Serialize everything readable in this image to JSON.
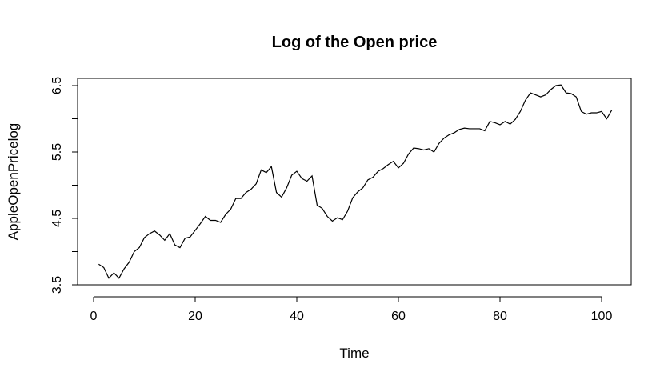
{
  "chart_data": {
    "type": "line",
    "title": "Log of the Open price",
    "xlabel": "Time",
    "ylabel": "AppleOpenPricelog",
    "xlim": [
      1,
      102
    ],
    "ylim": [
      3.5,
      6.5
    ],
    "grid": false,
    "line_color": "#000000",
    "x_ticks": [
      0,
      20,
      40,
      60,
      80,
      100
    ],
    "x_tick_labels": [
      "0",
      "20",
      "40",
      "60",
      "80",
      "100"
    ],
    "y_ticks": [
      3.5,
      4.0,
      4.5,
      5.0,
      5.5,
      6.0,
      6.5
    ],
    "y_tick_labels": [
      "3.5",
      "",
      "4.5",
      "",
      "5.5",
      "",
      "6.5"
    ],
    "x": [
      1,
      2,
      3,
      4,
      5,
      6,
      7,
      8,
      9,
      10,
      11,
      12,
      13,
      14,
      15,
      16,
      17,
      18,
      19,
      20,
      21,
      22,
      23,
      24,
      25,
      26,
      27,
      28,
      29,
      30,
      31,
      32,
      33,
      34,
      35,
      36,
      37,
      38,
      39,
      40,
      41,
      42,
      43,
      44,
      45,
      46,
      47,
      48,
      49,
      50,
      51,
      52,
      53,
      54,
      55,
      56,
      57,
      58,
      59,
      60,
      61,
      62,
      63,
      64,
      65,
      66,
      67,
      68,
      69,
      70,
      71,
      72,
      73,
      74,
      75,
      76,
      77,
      78,
      79,
      80,
      81,
      82,
      83,
      84,
      85,
      86,
      87,
      88,
      89,
      90,
      91,
      92,
      93,
      94,
      95,
      96,
      97,
      98,
      99,
      100,
      101,
      102
    ],
    "series": [
      {
        "values": [
          3.81,
          3.76,
          3.6,
          3.68,
          3.6,
          3.74,
          3.84,
          4.0,
          4.06,
          4.21,
          4.27,
          4.31,
          4.25,
          4.17,
          4.27,
          4.1,
          4.06,
          4.2,
          4.22,
          4.32,
          4.42,
          4.53,
          4.47,
          4.47,
          4.44,
          4.56,
          4.64,
          4.8,
          4.8,
          4.89,
          4.94,
          5.02,
          5.23,
          5.19,
          5.28,
          4.89,
          4.82,
          4.96,
          5.15,
          5.21,
          5.1,
          5.06,
          5.14,
          4.7,
          4.65,
          4.53,
          4.46,
          4.51,
          4.48,
          4.61,
          4.81,
          4.9,
          4.96,
          5.08,
          5.12,
          5.21,
          5.25,
          5.31,
          5.36,
          5.26,
          5.33,
          5.47,
          5.56,
          5.55,
          5.53,
          5.55,
          5.5,
          5.63,
          5.71,
          5.76,
          5.79,
          5.84,
          5.86,
          5.85,
          5.85,
          5.85,
          5.82,
          5.96,
          5.94,
          5.91,
          5.96,
          5.92,
          5.99,
          6.11,
          6.28,
          6.39,
          6.36,
          6.33,
          6.36,
          6.44,
          6.5,
          6.51,
          6.39,
          6.38,
          6.33,
          6.11,
          6.07,
          6.09,
          6.09,
          6.11,
          6.0,
          6.13
        ]
      }
    ]
  }
}
